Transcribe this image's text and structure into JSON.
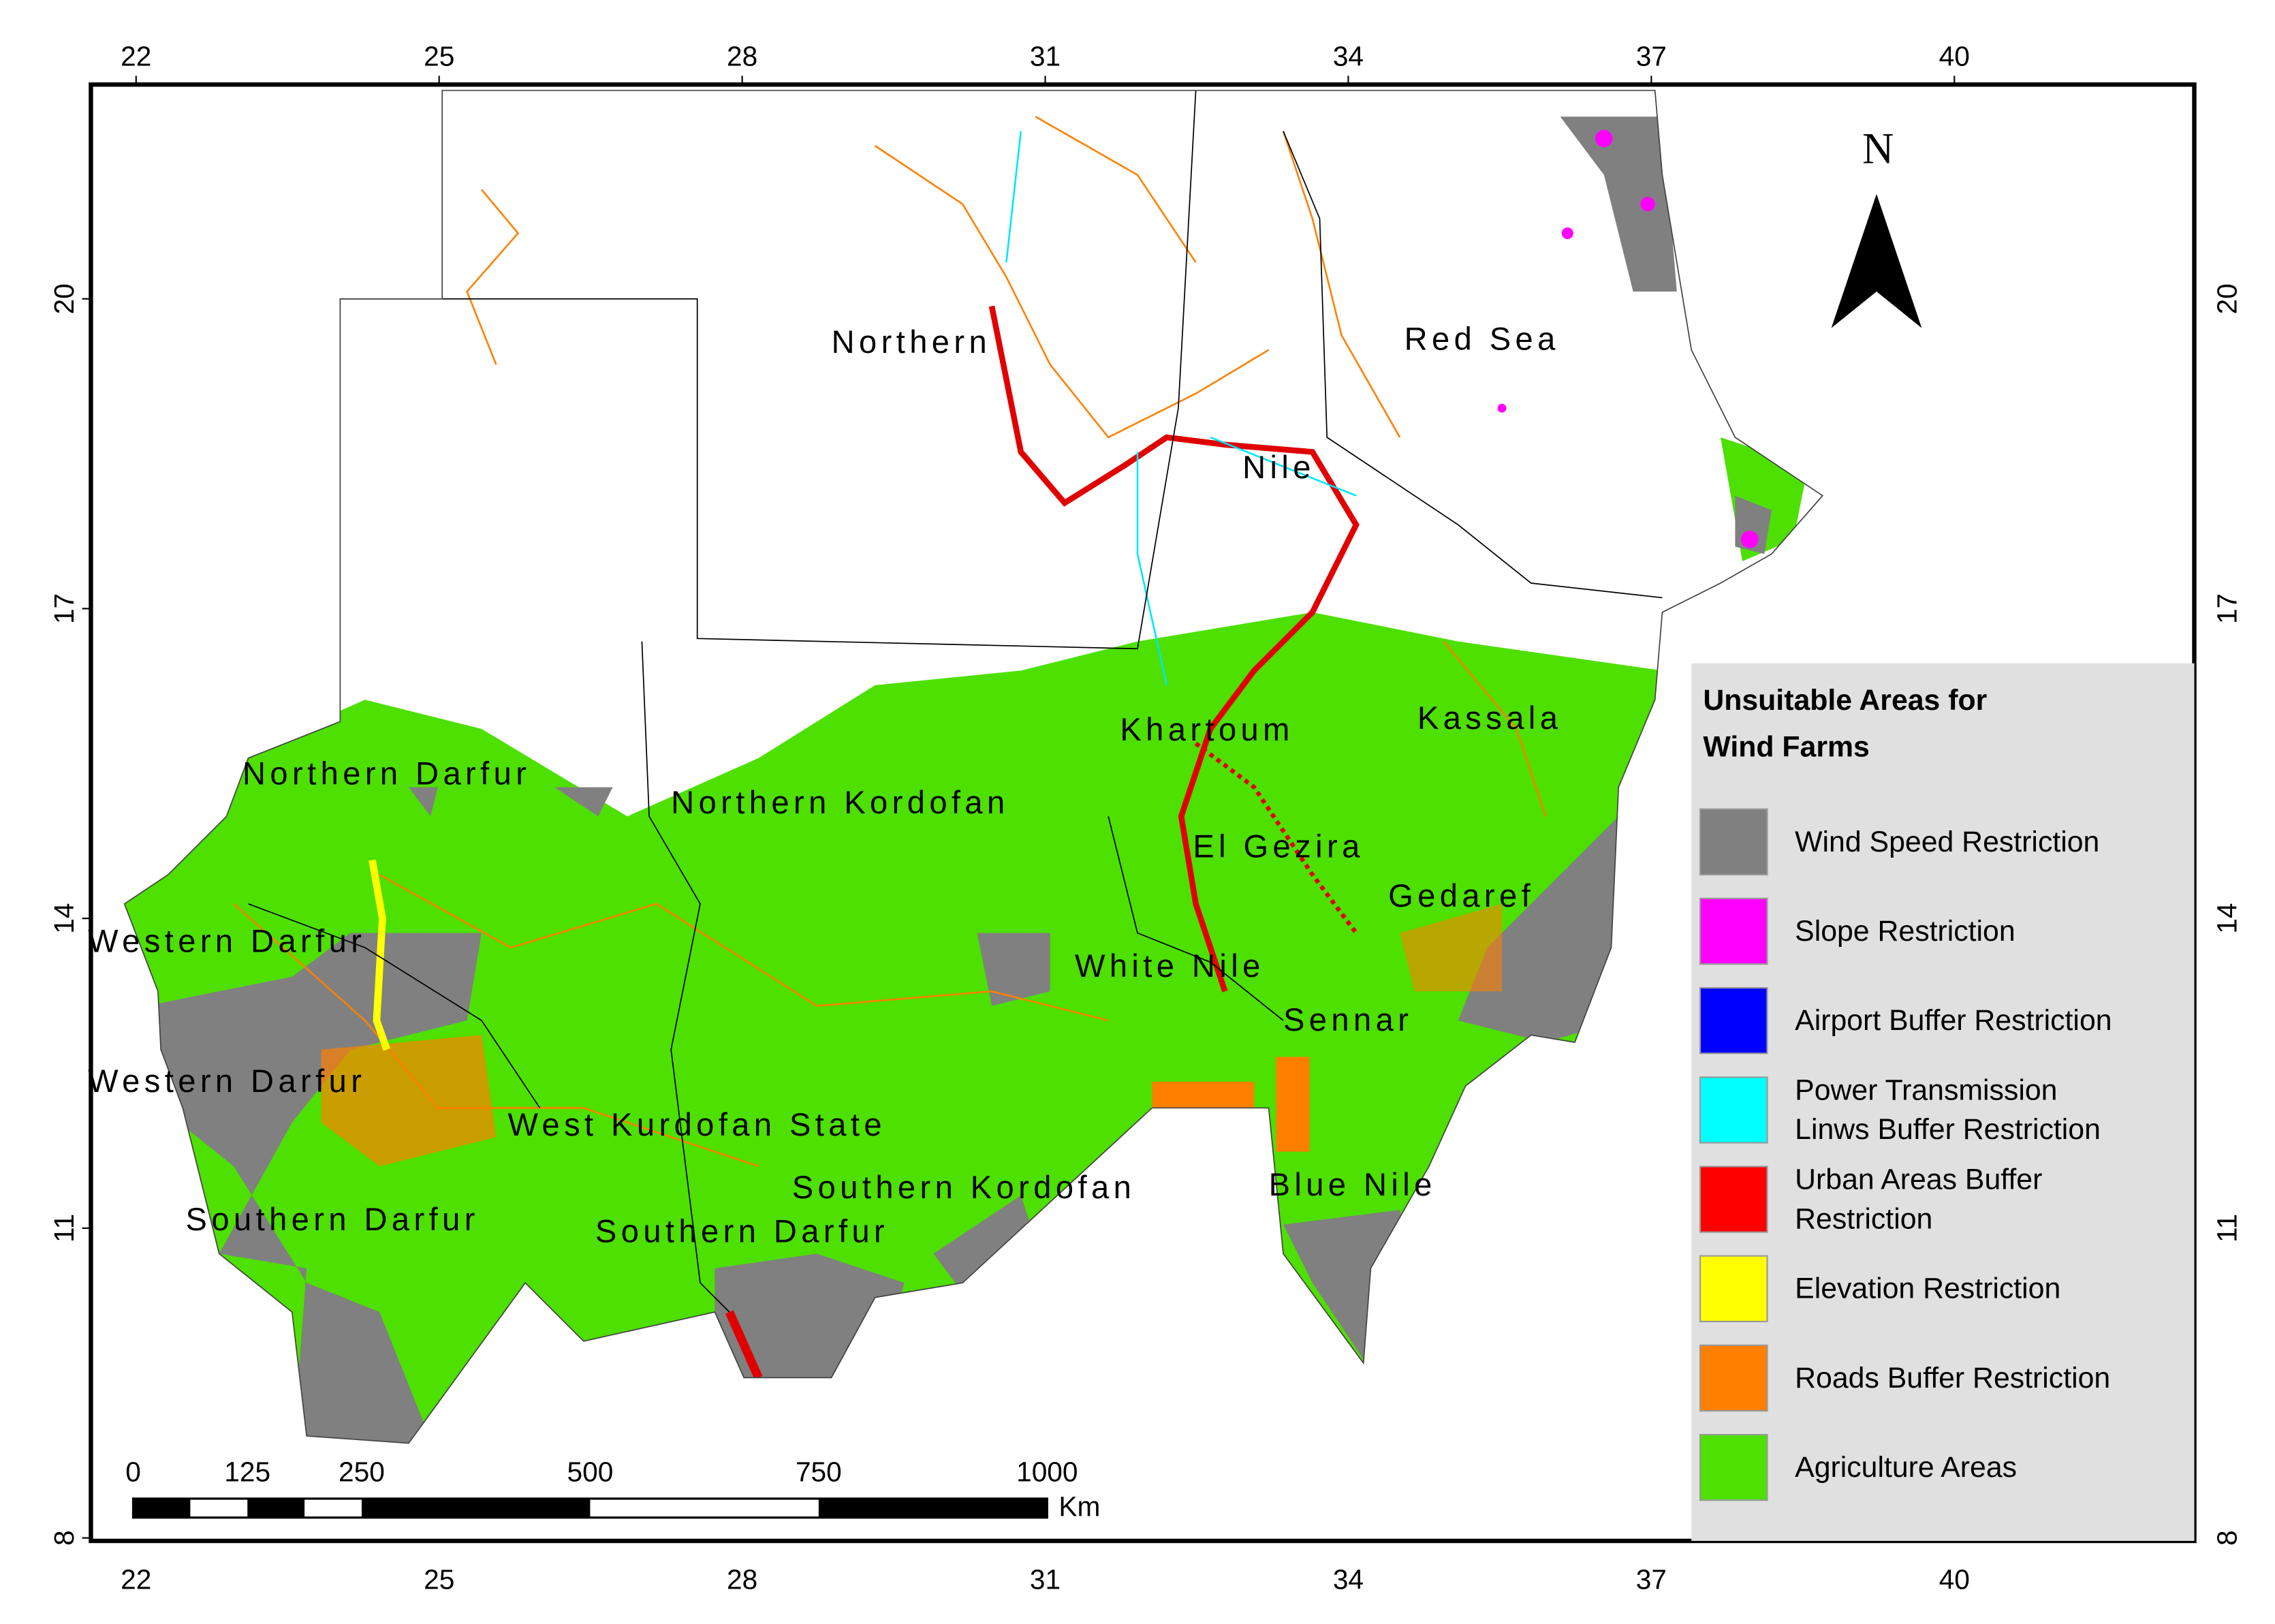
{
  "map": {
    "north_label": "N",
    "region_labels": [
      "Northern",
      "Red Sea",
      "Nile",
      "Khartoum",
      "Kassala",
      "Northern Darfur",
      "Northern Kordofan",
      "El Gezira",
      "Gedaref",
      "Western Darfur",
      "White Nile",
      "Sennar",
      "Western Darfur",
      "West Kurdofan State",
      "Southern Kordofan",
      "Blue Nile",
      "Southern Darfur",
      "Southern Darfur"
    ],
    "lon_ticks": [
      22,
      25,
      28,
      31,
      34,
      37,
      40
    ],
    "lat_ticks": [
      8,
      11,
      14,
      17,
      20
    ]
  },
  "scale_bar": {
    "ticks": [
      0,
      125,
      250,
      500,
      750,
      1000
    ],
    "unit": "Km"
  },
  "legend": {
    "title": [
      "Unsuitable Areas for",
      "Wind Farms"
    ],
    "items": [
      {
        "label": [
          "Wind Speed Restriction"
        ],
        "color": "#808080"
      },
      {
        "label": [
          "Slope Restriction"
        ],
        "color": "#ff00ff"
      },
      {
        "label": [
          "Airport Buffer Restriction"
        ],
        "color": "#0000ff"
      },
      {
        "label": [
          "Power Transmission",
          "Linws Buffer Restriction"
        ],
        "color": "#00ffff"
      },
      {
        "label": [
          "Urban Areas Buffer",
          "Restriction"
        ],
        "color": "#ff0000"
      },
      {
        "label": [
          "Elevation Restriction"
        ],
        "color": "#ffff00"
      },
      {
        "label": [
          "Roads Buffer Restriction"
        ],
        "color": "#ff8000"
      },
      {
        "label": [
          "Agriculture Areas"
        ],
        "color": "#4de000"
      }
    ]
  }
}
